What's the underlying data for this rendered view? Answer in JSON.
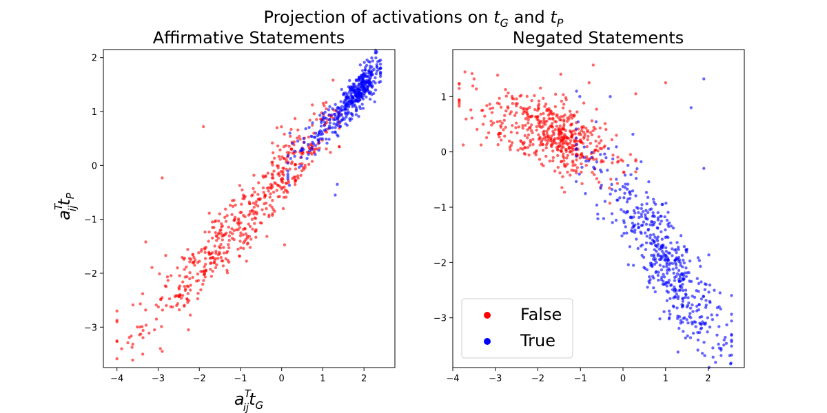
{
  "figure": {
    "title_prefix": "Projection of activations on ",
    "title_var1": "t",
    "title_sub1": "G",
    "title_and": " and ",
    "title_var2": "t",
    "title_sub2": "P"
  },
  "axes": {
    "x_label": {
      "base": "a",
      "sup": "T",
      "sub": "ij",
      "var": "t",
      "var_sub": "G"
    },
    "y_label": {
      "base": "a",
      "sup": "T",
      "sub": "ij",
      "var": "t",
      "var_sub": "P"
    }
  },
  "legend": {
    "placement": "lower-left of right panel",
    "entries": [
      {
        "label": "False",
        "color": "#ff0000"
      },
      {
        "label": "True",
        "color": "#0000ff"
      }
    ]
  },
  "chart_data": [
    {
      "type": "scatter",
      "title": "Affirmative Statements",
      "xlim": [
        -4.33,
        2.75
      ],
      "ylim": [
        -3.75,
        2.15
      ],
      "xticks": [
        -4,
        -3,
        -2,
        -1,
        0,
        1,
        2
      ],
      "yticks": [
        -3,
        -2,
        -1,
        0,
        1,
        2
      ],
      "grid": false,
      "series": [
        {
          "name": "False",
          "color": "#ff0000",
          "approx_count": 550,
          "pattern": "elongated diagonal cloud along y ≈ 0.85·x − 0.2, x from about -4 to 1.4, spread ±0.35",
          "outliers": [
            [
              -1.9,
              0.72
            ],
            [
              -2.9,
              -0.23
            ],
            [
              -4.0,
              -2.7
            ],
            [
              -4.0,
              -2.9
            ],
            [
              -2.9,
              -3.45
            ],
            [
              -3.3,
              -1.42
            ]
          ]
        },
        {
          "name": "True",
          "color": "#0000ff",
          "approx_count": 450,
          "pattern": "dense elongated cluster along y ≈ 0.85·x − 0.2, x from about 0.2 to 2.4, densest near (1.9, 1.3)",
          "outliers": [
            [
              1.3,
              -0.55
            ],
            [
              1.35,
              -0.35
            ],
            [
              0.2,
              0.6
            ]
          ]
        }
      ]
    },
    {
      "type": "scatter",
      "title": "Negated Statements",
      "xlim": [
        -4.0,
        2.85
      ],
      "ylim": [
        -3.9,
        1.85
      ],
      "xticks": [
        -4,
        -3,
        -2,
        -1,
        0,
        1,
        2
      ],
      "yticks": [
        -3,
        -2,
        -1,
        0,
        1
      ],
      "grid": false,
      "series": [
        {
          "name": "False",
          "color": "#ff0000",
          "approx_count": 520,
          "pattern": "band along y ≈ -0.28·x − 0.15 for x from about -3.8 to 0, densest near (-1.5, 0.2)",
          "outliers": [
            [
              -0.7,
              1.57
            ],
            [
              0.3,
              1.05
            ],
            [
              1.0,
              1.25
            ],
            [
              -3.5,
              1.32
            ]
          ]
        },
        {
          "name": "True",
          "color": "#0000ff",
          "approx_count": 520,
          "pattern": "cloud along y ≈ -1.05·x − 0.9 for x from about -1 to 2.5, densest near (1.2, -2.2)",
          "outliers": [
            [
              1.9,
              1.32
            ],
            [
              1.9,
              -0.3
            ],
            [
              1.6,
              0.8
            ],
            [
              -0.3,
              1.0
            ]
          ]
        }
      ]
    }
  ]
}
